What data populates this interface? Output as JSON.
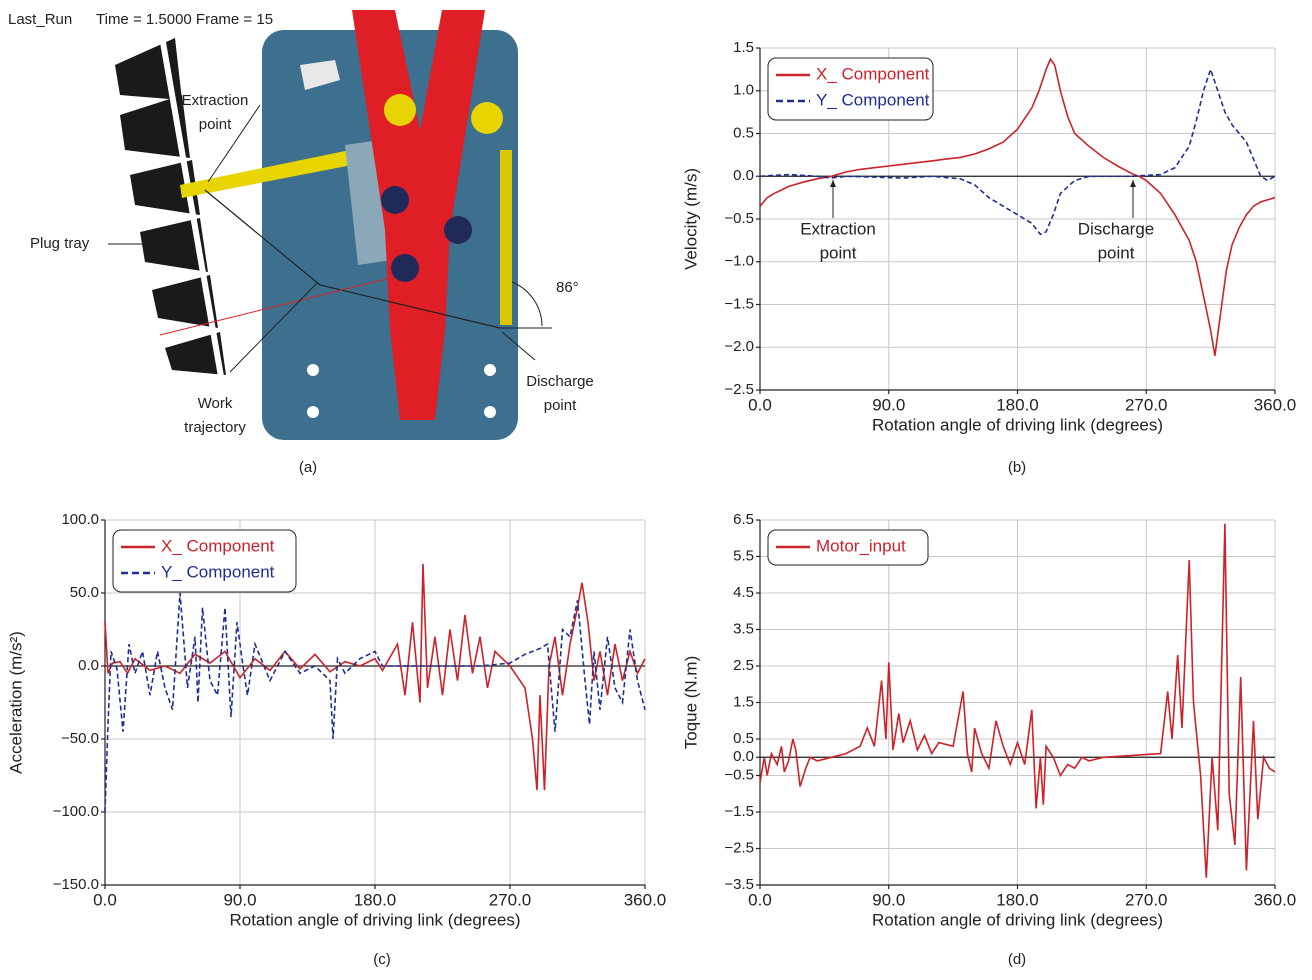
{
  "panel_a": {
    "header": "Last_Run",
    "time_frame": "Time = 1.5000 Frame = 15",
    "labels": {
      "extraction": [
        "Extraction",
        "point"
      ],
      "plug_tray": "Plug tray",
      "work_trajectory": [
        "Work",
        "trajectory"
      ],
      "angle": "86°",
      "discharge": [
        "Discharge",
        "point"
      ]
    },
    "caption": "(a)"
  },
  "chart_data": [
    {
      "type": "line",
      "caption": "(b)",
      "xlabel": "Rotation angle of driving link (degrees)",
      "ylabel": "Velocity (m/s)",
      "xlim": [
        0,
        360
      ],
      "ylim": [
        -2.5,
        1.5
      ],
      "xticks": [
        {
          "value": 0,
          "label": "0.0"
        },
        {
          "value": 90,
          "label": "90.0"
        },
        {
          "value": 180,
          "label": "180.0"
        },
        {
          "value": 270,
          "label": "270.0"
        },
        {
          "value": 360,
          "label": "360.0"
        }
      ],
      "yticks": [
        1.5,
        {
          "value": 1,
          "label": "1.0"
        },
        0.5,
        {
          "value": 0,
          "label": "0.0"
        },
        {
          "value": -0.5,
          "label": "−0.5"
        },
        {
          "value": -1,
          "label": "−1.0"
        },
        {
          "value": -1.5,
          "label": "−1.5"
        },
        {
          "value": -2,
          "label": "−2.0"
        },
        {
          "value": -2.5,
          "label": "−2.5"
        }
      ],
      "grid": true,
      "legend": "upper left",
      "annotations": [
        [
          "Extraction",
          "point"
        ],
        [
          "Discharge",
          "point"
        ]
      ],
      "series": [
        {
          "name": "X_ Component",
          "color": "#cc2229",
          "dashed": false,
          "x": [
            0,
            5,
            10,
            20,
            30,
            40,
            50,
            60,
            70,
            80,
            90,
            100,
            110,
            120,
            130,
            140,
            150,
            160,
            170,
            180,
            190,
            195,
            200,
            203,
            206,
            210,
            215,
            220,
            230,
            240,
            250,
            260,
            265,
            270,
            280,
            290,
            300,
            305,
            310,
            315,
            318,
            322,
            326,
            330,
            335,
            340,
            345,
            350,
            360
          ],
          "values": [
            -0.35,
            -0.25,
            -0.2,
            -0.12,
            -0.07,
            -0.03,
            0.0,
            0.05,
            0.08,
            0.1,
            0.12,
            0.14,
            0.16,
            0.18,
            0.2,
            0.22,
            0.26,
            0.32,
            0.4,
            0.55,
            0.8,
            1.0,
            1.25,
            1.37,
            1.3,
            1.0,
            0.7,
            0.5,
            0.35,
            0.22,
            0.12,
            0.03,
            0.0,
            -0.05,
            -0.2,
            -0.45,
            -0.75,
            -1.0,
            -1.4,
            -1.8,
            -2.1,
            -1.6,
            -1.1,
            -0.8,
            -0.6,
            -0.45,
            -0.35,
            -0.3,
            -0.25
          ]
        },
        {
          "name": "Y_ Component",
          "color": "#1f2f8f",
          "dashed": true,
          "x": [
            0,
            20,
            40,
            50,
            60,
            80,
            100,
            120,
            140,
            150,
            160,
            170,
            180,
            190,
            196,
            200,
            205,
            210,
            220,
            230,
            260,
            280,
            290,
            300,
            305,
            310,
            315,
            320,
            325,
            330,
            340,
            345,
            350,
            355,
            360
          ],
          "values": [
            0,
            0.02,
            0,
            -0.02,
            0,
            -0.01,
            -0.02,
            0,
            -0.03,
            -0.1,
            -0.25,
            -0.35,
            -0.45,
            -0.55,
            -0.68,
            -0.65,
            -0.45,
            -0.2,
            -0.05,
            0,
            0,
            0.02,
            0.1,
            0.35,
            0.65,
            1.0,
            1.25,
            1.0,
            0.75,
            0.6,
            0.4,
            0.2,
            0,
            -0.05,
            0
          ]
        }
      ]
    },
    {
      "type": "line",
      "caption": "(c)",
      "xlabel": "Rotation angle of driving link (degrees)",
      "ylabel": "Acceleration (m/s²)",
      "xlim": [
        0,
        360
      ],
      "ylim": [
        -150,
        100
      ],
      "xticks": [
        {
          "value": 0,
          "label": "0.0"
        },
        {
          "value": 90,
          "label": "90.0"
        },
        {
          "value": 180,
          "label": "180.0"
        },
        {
          "value": 270,
          "label": "270.0"
        },
        {
          "value": 360,
          "label": "360.0"
        }
      ],
      "yticks": [
        {
          "value": 100,
          "label": "100.0"
        },
        {
          "value": 50,
          "label": "50.0"
        },
        {
          "value": 0,
          "label": "0.0"
        },
        {
          "value": -50,
          "label": "−50.0"
        },
        {
          "value": -100,
          "label": "−100.0"
        },
        {
          "value": -150,
          "label": "−150.0"
        }
      ],
      "grid": true,
      "legend": "upper left",
      "series": [
        {
          "name": "X_ Component",
          "color": "#cc2229",
          "dashed": false,
          "x": [
            0,
            2,
            5,
            10,
            15,
            20,
            30,
            40,
            50,
            60,
            70,
            80,
            90,
            100,
            110,
            120,
            130,
            140,
            150,
            160,
            170,
            180,
            185,
            195,
            200,
            205,
            210,
            212,
            215,
            220,
            225,
            230,
            235,
            240,
            245,
            250,
            255,
            260,
            270,
            280,
            285,
            288,
            290,
            293,
            296,
            300,
            305,
            310,
            315,
            318,
            322,
            326,
            330,
            335,
            340,
            345,
            350,
            355,
            360
          ],
          "values": [
            30,
            -5,
            2,
            3,
            -5,
            5,
            -3,
            0,
            -5,
            8,
            2,
            10,
            -8,
            5,
            -3,
            10,
            -2,
            8,
            -4,
            3,
            0,
            5,
            -3,
            15,
            -20,
            30,
            -25,
            70,
            -15,
            20,
            -20,
            25,
            -10,
            35,
            -5,
            20,
            -15,
            10,
            0,
            -15,
            -50,
            -85,
            -20,
            -85,
            0,
            20,
            -20,
            15,
            40,
            57,
            30,
            -10,
            10,
            -20,
            15,
            -10,
            10,
            -5,
            5
          ]
        },
        {
          "name": "Y_ Component",
          "color": "#1f2f8f",
          "dashed": true,
          "x": [
            0,
            2,
            4,
            8,
            12,
            16,
            20,
            25,
            30,
            35,
            40,
            45,
            50,
            55,
            60,
            62,
            65,
            70,
            75,
            80,
            84,
            88,
            92,
            95,
            100,
            110,
            120,
            130,
            140,
            150,
            152,
            155,
            160,
            170,
            180,
            185,
            200,
            250,
            270,
            280,
            290,
            295,
            300,
            305,
            310,
            315,
            320,
            323,
            326,
            330,
            335,
            340,
            345,
            350,
            355,
            360
          ],
          "values": [
            -100,
            -40,
            10,
            -2,
            -45,
            15,
            -5,
            10,
            -20,
            10,
            -15,
            -30,
            50,
            -15,
            20,
            -25,
            40,
            -10,
            -20,
            40,
            -35,
            30,
            0,
            -20,
            15,
            -10,
            10,
            -5,
            0,
            -10,
            -50,
            5,
            -5,
            5,
            10,
            0,
            0,
            0,
            2,
            8,
            12,
            15,
            -45,
            25,
            20,
            45,
            -10,
            -40,
            10,
            -30,
            20,
            -15,
            -25,
            25,
            -10,
            -30
          ]
        }
      ]
    },
    {
      "type": "line",
      "caption": "(d)",
      "xlabel": "Rotation angle of driving link (degrees)",
      "ylabel": "Toque (N.m)",
      "xlim": [
        0,
        360
      ],
      "ylim": [
        -3.5,
        6.5
      ],
      "xticks": [
        {
          "value": 0,
          "label": "0.0"
        },
        {
          "value": 90,
          "label": "90.0"
        },
        {
          "value": 180,
          "label": "180.0"
        },
        {
          "value": 270,
          "label": "270.0"
        },
        {
          "value": 360,
          "label": "360.0"
        }
      ],
      "yticks": [
        6.5,
        5.5,
        4.5,
        3.5,
        2.5,
        1.5,
        0.5,
        {
          "value": 0,
          "label": "0.0"
        },
        {
          "value": -0.5,
          "label": "−0.5"
        },
        {
          "value": -1.5,
          "label": "−1.5"
        },
        {
          "value": -2.5,
          "label": "−2.5"
        },
        {
          "value": -3.5,
          "label": "−3.5"
        }
      ],
      "grid": true,
      "legend": "upper left",
      "series": [
        {
          "name": "Motor_input",
          "color": "#cc2229",
          "dashed": false,
          "x": [
            0,
            3,
            5,
            8,
            12,
            15,
            17,
            20,
            23,
            25,
            28,
            32,
            35,
            40,
            50,
            60,
            70,
            75,
            80,
            85,
            88,
            90,
            93,
            97,
            100,
            105,
            110,
            115,
            120,
            125,
            135,
            142,
            145,
            148,
            150,
            155,
            160,
            165,
            170,
            175,
            180,
            185,
            190,
            193,
            196,
            198,
            200,
            205,
            210,
            215,
            220,
            225,
            230,
            240,
            280,
            285,
            288,
            292,
            295,
            300,
            303,
            308,
            312,
            316,
            320,
            325,
            328,
            332,
            336,
            340,
            345,
            348,
            352,
            356,
            360
          ],
          "values": [
            -0.7,
            0,
            -0.5,
            0.1,
            -0.2,
            0.3,
            -0.4,
            -0.1,
            0.5,
            0.2,
            -0.8,
            -0.3,
            0,
            -0.1,
            0,
            0.1,
            0.3,
            0.8,
            0.3,
            2.1,
            0.5,
            2.6,
            0.2,
            1.2,
            0.4,
            1.0,
            0.2,
            0.6,
            0.1,
            0.4,
            0.3,
            1.8,
            0.1,
            -0.4,
            0.8,
            0.1,
            -0.3,
            1.0,
            0.3,
            -0.2,
            0.4,
            -0.2,
            1.3,
            -1.4,
            0,
            -1.3,
            0.3,
            0,
            -0.5,
            -0.2,
            -0.3,
            0,
            -0.1,
            0,
            0.1,
            1.8,
            0.5,
            2.8,
            0.8,
            5.4,
            1.5,
            -0.5,
            -3.3,
            0,
            -2.0,
            6.4,
            -1.0,
            -2.4,
            2.2,
            -3.1,
            1.0,
            -1.7,
            0,
            -0.3,
            -0.4
          ]
        }
      ]
    }
  ]
}
